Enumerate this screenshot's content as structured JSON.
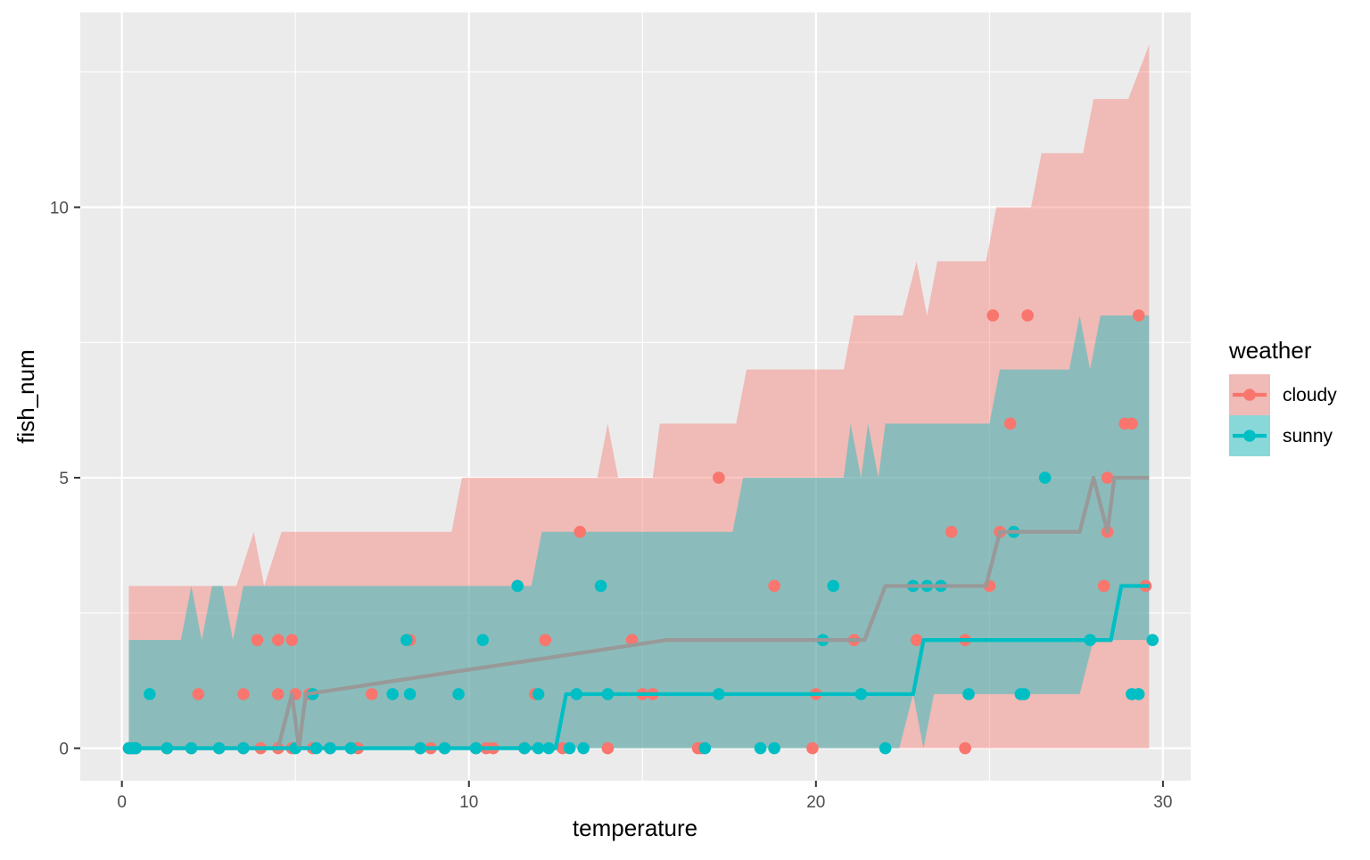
{
  "chart_data": {
    "type": "scatter",
    "xlabel": "temperature",
    "ylabel": "fish_num",
    "xlim": [
      -1.2,
      30.8
    ],
    "ylim": [
      -0.6,
      13.6
    ],
    "x_ticks": [
      0,
      10,
      20,
      30
    ],
    "x_tick_labels": [
      "0",
      "10",
      "20",
      "30"
    ],
    "y_ticks": [
      0,
      5,
      10
    ],
    "y_tick_labels": [
      "0",
      "5",
      "10"
    ],
    "y_minor": [
      2.5,
      7.5,
      12.5
    ],
    "x_minor": [
      5,
      15,
      25
    ],
    "panel_background": "#ebebeb",
    "grid": true,
    "legend": {
      "title": "weather",
      "position": "right",
      "entries": [
        {
          "label": "cloudy",
          "color": "#F8766D"
        },
        {
          "label": "sunny",
          "color": "#00BFC4"
        }
      ]
    },
    "overlap_color": "#999999",
    "series": [
      {
        "name": "cloudy",
        "color": "#F8766D",
        "points": [
          [
            0.2,
            0
          ],
          [
            0.3,
            0
          ],
          [
            0.4,
            0
          ],
          [
            1.3,
            0
          ],
          [
            2.0,
            0
          ],
          [
            2.2,
            1
          ],
          [
            2.8,
            0
          ],
          [
            3.5,
            0
          ],
          [
            3.5,
            1
          ],
          [
            3.9,
            2
          ],
          [
            4.0,
            0
          ],
          [
            4.5,
            0
          ],
          [
            4.5,
            1
          ],
          [
            4.5,
            2
          ],
          [
            4.9,
            0
          ],
          [
            4.9,
            2
          ],
          [
            5.0,
            1
          ],
          [
            5.4,
            1
          ],
          [
            5.5,
            0
          ],
          [
            6.0,
            0
          ],
          [
            6.6,
            0
          ],
          [
            6.8,
            0
          ],
          [
            7.2,
            1
          ],
          [
            8.3,
            2
          ],
          [
            8.6,
            0
          ],
          [
            8.9,
            0
          ],
          [
            9.3,
            0
          ],
          [
            10.2,
            0
          ],
          [
            10.5,
            0
          ],
          [
            10.7,
            0
          ],
          [
            11.6,
            0
          ],
          [
            11.9,
            1
          ],
          [
            12.2,
            2
          ],
          [
            12.7,
            0
          ],
          [
            13.2,
            4
          ],
          [
            14.0,
            0
          ],
          [
            14.7,
            2
          ],
          [
            15.0,
            1
          ],
          [
            15.3,
            1
          ],
          [
            16.6,
            0
          ],
          [
            16.7,
            0
          ],
          [
            17.2,
            5
          ],
          [
            18.8,
            3
          ],
          [
            19.9,
            0
          ],
          [
            20.0,
            1
          ],
          [
            21.1,
            2
          ],
          [
            22.9,
            2
          ],
          [
            23.9,
            4
          ],
          [
            24.3,
            0
          ],
          [
            24.3,
            2
          ],
          [
            25.0,
            3
          ],
          [
            25.1,
            8
          ],
          [
            25.3,
            4
          ],
          [
            25.6,
            6
          ],
          [
            26.1,
            8
          ],
          [
            28.3,
            3
          ],
          [
            28.4,
            4
          ],
          [
            28.4,
            5
          ],
          [
            28.9,
            6
          ],
          [
            29.1,
            6
          ],
          [
            29.3,
            8
          ],
          [
            29.5,
            3
          ]
        ],
        "fit": [
          [
            0.2,
            0
          ],
          [
            4.5,
            0
          ],
          [
            4.9,
            1
          ],
          [
            5.1,
            0
          ],
          [
            5.3,
            1
          ],
          [
            15.7,
            2
          ],
          [
            21.4,
            2
          ],
          [
            22.0,
            3
          ],
          [
            24.9,
            3
          ],
          [
            25.3,
            4
          ],
          [
            27.6,
            4
          ],
          [
            28.0,
            5
          ],
          [
            28.4,
            4
          ],
          [
            28.6,
            5
          ],
          [
            29.6,
            5
          ]
        ],
        "band_upper": [
          [
            0.2,
            3
          ],
          [
            3.3,
            3
          ],
          [
            3.8,
            4
          ],
          [
            4.1,
            3
          ],
          [
            4.6,
            4
          ],
          [
            9.5,
            4
          ],
          [
            9.8,
            5
          ],
          [
            13.7,
            5
          ],
          [
            14.0,
            6
          ],
          [
            14.3,
            5
          ],
          [
            15.3,
            5
          ],
          [
            15.5,
            6
          ],
          [
            17.7,
            6
          ],
          [
            18.0,
            7
          ],
          [
            20.8,
            7
          ],
          [
            21.1,
            8
          ],
          [
            22.5,
            8
          ],
          [
            22.9,
            9
          ],
          [
            23.2,
            8
          ],
          [
            23.5,
            9
          ],
          [
            24.9,
            9
          ],
          [
            25.2,
            10
          ],
          [
            26.2,
            10
          ],
          [
            26.5,
            11
          ],
          [
            27.7,
            11
          ],
          [
            28.0,
            12
          ],
          [
            29.0,
            12
          ],
          [
            29.6,
            13
          ]
        ],
        "band_lower": [
          [
            0.2,
            0
          ],
          [
            29.6,
            0
          ]
        ]
      },
      {
        "name": "sunny",
        "color": "#00BFC4",
        "points": [
          [
            0.2,
            0
          ],
          [
            0.3,
            0
          ],
          [
            0.4,
            0
          ],
          [
            0.8,
            1
          ],
          [
            1.3,
            0
          ],
          [
            2.0,
            0
          ],
          [
            2.8,
            0
          ],
          [
            3.5,
            0
          ],
          [
            5.0,
            0
          ],
          [
            5.5,
            1
          ],
          [
            5.6,
            0
          ],
          [
            6.0,
            0
          ],
          [
            6.6,
            0
          ],
          [
            7.8,
            1
          ],
          [
            8.2,
            2
          ],
          [
            8.3,
            1
          ],
          [
            8.6,
            0
          ],
          [
            9.3,
            0
          ],
          [
            9.7,
            1
          ],
          [
            10.2,
            0
          ],
          [
            10.4,
            2
          ],
          [
            11.4,
            3
          ],
          [
            11.6,
            0
          ],
          [
            12.0,
            1
          ],
          [
            12.0,
            0
          ],
          [
            12.3,
            0
          ],
          [
            12.9,
            0
          ],
          [
            13.1,
            1
          ],
          [
            13.3,
            0
          ],
          [
            13.8,
            3
          ],
          [
            14.0,
            1
          ],
          [
            16.8,
            0
          ],
          [
            17.2,
            1
          ],
          [
            18.4,
            0
          ],
          [
            18.8,
            0
          ],
          [
            20.2,
            2
          ],
          [
            20.5,
            3
          ],
          [
            21.3,
            1
          ],
          [
            22.0,
            0
          ],
          [
            22.8,
            3
          ],
          [
            23.2,
            3
          ],
          [
            23.6,
            3
          ],
          [
            24.4,
            1
          ],
          [
            25.7,
            4
          ],
          [
            25.9,
            1
          ],
          [
            26.0,
            1
          ],
          [
            26.6,
            5
          ],
          [
            27.9,
            2
          ],
          [
            29.1,
            1
          ],
          [
            29.3,
            1
          ],
          [
            29.7,
            2
          ]
        ],
        "fit": [
          [
            0.2,
            0
          ],
          [
            12.5,
            0
          ],
          [
            12.8,
            1
          ],
          [
            22.8,
            1
          ],
          [
            23.1,
            2
          ],
          [
            28.5,
            2
          ],
          [
            28.8,
            3
          ],
          [
            29.6,
            3
          ]
        ],
        "band_upper": [
          [
            0.2,
            2
          ],
          [
            1.7,
            2
          ],
          [
            2.0,
            3
          ],
          [
            2.3,
            2
          ],
          [
            2.6,
            3
          ],
          [
            2.9,
            3
          ],
          [
            3.2,
            2
          ],
          [
            3.5,
            3
          ],
          [
            11.8,
            3
          ],
          [
            12.1,
            4
          ],
          [
            17.6,
            4
          ],
          [
            17.9,
            5
          ],
          [
            20.8,
            5
          ],
          [
            21.0,
            6
          ],
          [
            21.3,
            5
          ],
          [
            21.5,
            6
          ],
          [
            21.8,
            5
          ],
          [
            22.0,
            6
          ],
          [
            25.0,
            6
          ],
          [
            25.3,
            7
          ],
          [
            27.3,
            7
          ],
          [
            27.6,
            8
          ],
          [
            27.9,
            7
          ],
          [
            28.2,
            8
          ],
          [
            29.6,
            8
          ]
        ],
        "band_lower": [
          [
            0.2,
            0
          ],
          [
            22.4,
            0
          ],
          [
            22.8,
            1
          ],
          [
            23.1,
            0
          ],
          [
            23.4,
            1
          ],
          [
            27.6,
            1
          ],
          [
            28.0,
            2
          ],
          [
            29.6,
            2
          ]
        ]
      }
    ]
  }
}
